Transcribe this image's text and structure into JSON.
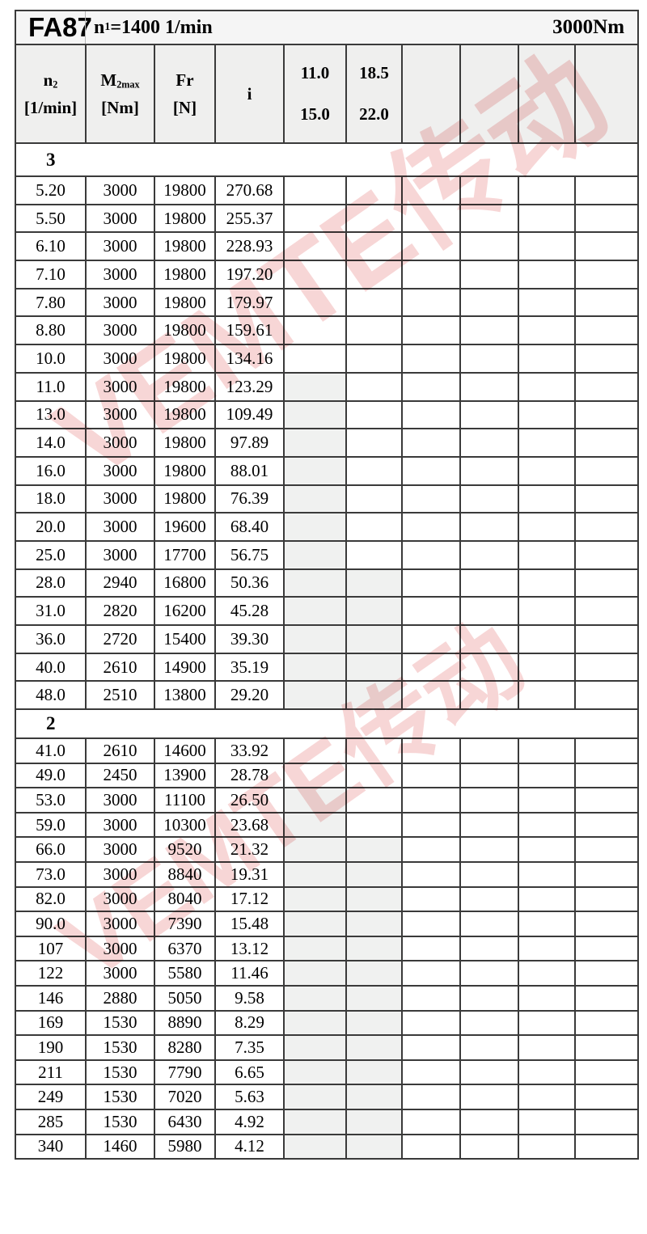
{
  "title": {
    "model": "FA87",
    "n1_base": "n",
    "n1_sub": "1",
    "n1_rest": "=1400 1/min",
    "torque": "3000Nm"
  },
  "watermark": {
    "text": "VEMTE传动",
    "color": "#e06060"
  },
  "colors": {
    "border": "#3a3a3a",
    "header_bg": "#efefee",
    "shaded_cell": "#f0f1f0",
    "title_bg": "#f5f5f5",
    "watermark_pink": "#e06060"
  },
  "table": {
    "columns": [
      {
        "name": "n2",
        "base": "n",
        "sub": "2",
        "line2": "[1/min]"
      },
      {
        "name": "m2max",
        "base": "M",
        "sub": "2max",
        "line2": "[Nm]"
      },
      {
        "name": "fr",
        "base": "Fr",
        "sub": "",
        "line2": "[N]"
      },
      {
        "name": "i",
        "base": "i",
        "sub": "",
        "line2": ""
      },
      {
        "name": "ratio-11-15",
        "base": "11.0",
        "sub": "",
        "line2": "15.0"
      },
      {
        "name": "ratio-18-22",
        "base": "18.5",
        "sub": "",
        "line2": "22.0"
      },
      {
        "name": "empty-1",
        "base": "",
        "sub": "",
        "line2": ""
      },
      {
        "name": "empty-2",
        "base": "",
        "sub": "",
        "line2": ""
      },
      {
        "name": "empty-3",
        "base": "",
        "sub": "",
        "line2": ""
      },
      {
        "name": "empty-4",
        "base": "",
        "sub": "",
        "line2": ""
      }
    ],
    "cell_names": [
      "cell-n2",
      "cell-m2max",
      "cell-fr",
      "cell-i",
      "cell-ratio-a",
      "cell-ratio-b",
      "cell-empty",
      "cell-empty",
      "cell-empty",
      "cell-empty"
    ],
    "sections": [
      {
        "label": "3",
        "rows": [
          [
            "5.20",
            "3000",
            "19800",
            "270.68",
            0,
            0
          ],
          [
            "5.50",
            "3000",
            "19800",
            "255.37",
            0,
            0
          ],
          [
            "6.10",
            "3000",
            "19800",
            "228.93",
            0,
            0
          ],
          [
            "7.10",
            "3000",
            "19800",
            "197.20",
            0,
            0
          ],
          [
            "7.80",
            "3000",
            "19800",
            "179.97",
            0,
            0
          ],
          [
            "8.80",
            "3000",
            "19800",
            "159.61",
            0,
            0
          ],
          [
            "10.0",
            "3000",
            "19800",
            "134.16",
            0,
            0
          ],
          [
            "11.0",
            "3000",
            "19800",
            "123.29",
            1,
            0
          ],
          [
            "13.0",
            "3000",
            "19800",
            "109.49",
            1,
            0
          ],
          [
            "14.0",
            "3000",
            "19800",
            "97.89",
            1,
            0
          ],
          [
            "16.0",
            "3000",
            "19800",
            "88.01",
            1,
            0
          ],
          [
            "18.0",
            "3000",
            "19800",
            "76.39",
            1,
            0
          ],
          [
            "20.0",
            "3000",
            "19600",
            "68.40",
            1,
            0
          ],
          [
            "25.0",
            "3000",
            "17700",
            "56.75",
            1,
            0
          ],
          [
            "28.0",
            "2940",
            "16800",
            "50.36",
            1,
            1
          ],
          [
            "31.0",
            "2820",
            "16200",
            "45.28",
            1,
            1
          ],
          [
            "36.0",
            "2720",
            "15400",
            "39.30",
            1,
            1
          ],
          [
            "40.0",
            "2610",
            "14900",
            "35.19",
            1,
            1
          ],
          [
            "48.0",
            "2510",
            "13800",
            "29.20",
            1,
            1
          ]
        ]
      },
      {
        "label": "2",
        "rows": [
          [
            "41.0",
            "2610",
            "14600",
            "33.92",
            0,
            0
          ],
          [
            "49.0",
            "2450",
            "13900",
            "28.78",
            0,
            0
          ],
          [
            "53.0",
            "3000",
            "11100",
            "26.50",
            1,
            0
          ],
          [
            "59.0",
            "3000",
            "10300",
            "23.68",
            1,
            0
          ],
          [
            "66.0",
            "3000",
            "9520",
            "21.32",
            1,
            1
          ],
          [
            "73.0",
            "3000",
            "8840",
            "19.31",
            1,
            1
          ],
          [
            "82.0",
            "3000",
            "8040",
            "17.12",
            1,
            1
          ],
          [
            "90.0",
            "3000",
            "7390",
            "15.48",
            1,
            1
          ],
          [
            "107",
            "3000",
            "6370",
            "13.12",
            1,
            1
          ],
          [
            "122",
            "3000",
            "5580",
            "11.46",
            1,
            1
          ],
          [
            "146",
            "2880",
            "5050",
            "9.58",
            1,
            1
          ],
          [
            "169",
            "1530",
            "8890",
            "8.29",
            1,
            1
          ],
          [
            "190",
            "1530",
            "8280",
            "7.35",
            1,
            1
          ],
          [
            "211",
            "1530",
            "7790",
            "6.65",
            1,
            1
          ],
          [
            "249",
            "1530",
            "7020",
            "5.63",
            1,
            1
          ],
          [
            "285",
            "1530",
            "6430",
            "4.92",
            1,
            1
          ],
          [
            "340",
            "1460",
            "5980",
            "4.12",
            1,
            1
          ]
        ]
      }
    ]
  }
}
